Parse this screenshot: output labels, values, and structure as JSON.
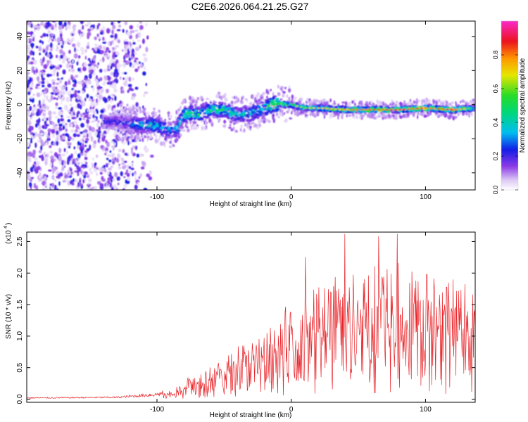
{
  "title": "C2E6.2026.064.21.25.G27",
  "colors": {
    "snr_line": "#e8252a",
    "axis": "#000000"
  },
  "chart_data": [
    {
      "type": "heatmap",
      "name": "spectrogram",
      "xlabel": "Height of straight line (km)",
      "ylabel": "Frequency (Hz)",
      "xlim": [
        -197,
        137
      ],
      "ylim": [
        -50,
        49
      ],
      "xticks": [
        -100,
        0,
        100
      ],
      "xtick_labels": [
        "-100",
        "0",
        "100"
      ],
      "yticks": [
        -40,
        -20,
        0,
        20,
        40
      ],
      "ytick_labels": [
        "-40",
        "-20",
        "0",
        "20",
        "40"
      ],
      "colorbar": {
        "label": "Normalized spectral amplitude",
        "range": [
          0,
          1
        ],
        "ticks": [
          0.0,
          0.2,
          0.4,
          0.6,
          0.8
        ],
        "tick_labels": [
          "0.0",
          "0.2",
          "0.4",
          "0.6",
          "0.8"
        ],
        "colormap": "rainbow (white-violet-blue-cyan-green-yellow-orange-red-magenta)"
      },
      "signal_track": {
        "x": [
          -197,
          -130,
          -120,
          -110,
          -100,
          -95,
          -90,
          -85,
          -80,
          -75,
          -70,
          -60,
          -50,
          -40,
          -30,
          -20,
          -10,
          -5,
          0,
          5,
          10,
          20,
          40,
          60,
          80,
          100,
          120,
          137
        ],
        "freq": [
          -10,
          -10,
          -11,
          -12,
          -12,
          -14,
          -15,
          -14,
          -6,
          -5,
          -6,
          -3,
          -3,
          -6,
          -5,
          -2,
          1,
          0,
          0,
          -1,
          -2,
          -2,
          -3,
          -3,
          -3,
          -2,
          -3,
          -2
        ],
        "amplitude": [
          0.15,
          0.25,
          0.35,
          0.45,
          0.5,
          0.45,
          0.4,
          0.45,
          0.5,
          0.55,
          0.5,
          0.5,
          0.5,
          0.45,
          0.45,
          0.5,
          0.85,
          0.7,
          0.55,
          0.6,
          0.6,
          0.65,
          0.75,
          0.8,
          0.85,
          0.8,
          0.85,
          0.5
        ]
      },
      "noise_region": {
        "x_from": -197,
        "x_to": -105,
        "note": "broadband violet noise"
      }
    },
    {
      "type": "line",
      "name": "snr",
      "xlabel": "Height of straight line (km)",
      "ylabel": "SNR (10 * v/v)",
      "scale_label": "(x10",
      "scale_exponent": "4",
      "xlim": [
        -197,
        137
      ],
      "ylim": [
        -0.05,
        2.65
      ],
      "xticks": [
        -100,
        0,
        100
      ],
      "xtick_labels": [
        "-100",
        "0",
        "100"
      ],
      "yticks": [
        0.0,
        0.5,
        1.0,
        1.5,
        2.0,
        2.5
      ],
      "ytick_labels": [
        "0.0",
        "0.5",
        "1.0",
        "1.5",
        "2.0",
        "2.5"
      ],
      "envelope": {
        "x": [
          -197,
          -130,
          -100,
          -90,
          -80,
          -75,
          -70,
          -60,
          -50,
          -40,
          -30,
          -20,
          -15,
          -10,
          -5,
          0,
          5,
          10,
          15,
          20,
          30,
          40,
          50,
          60,
          70,
          80,
          90,
          100,
          110,
          120,
          130,
          137
        ],
        "y": [
          0.02,
          0.03,
          0.08,
          0.12,
          0.22,
          0.4,
          0.35,
          0.45,
          0.55,
          0.75,
          0.8,
          0.95,
          1.05,
          0.9,
          1.3,
          1.2,
          1.45,
          1.6,
          1.55,
          1.55,
          1.7,
          1.75,
          1.8,
          1.9,
          1.85,
          1.9,
          1.75,
          1.8,
          1.7,
          1.7,
          1.6,
          1.55
        ]
      },
      "peaks": [
        {
          "x": 10.5,
          "y": 2.25
        },
        {
          "x": 40,
          "y": 2.62
        },
        {
          "x": 65,
          "y": 2.58
        },
        {
          "x": 79,
          "y": 2.62
        },
        {
          "x": 90,
          "y": 2.02
        },
        {
          "x": 101,
          "y": 1.98
        }
      ]
    }
  ]
}
